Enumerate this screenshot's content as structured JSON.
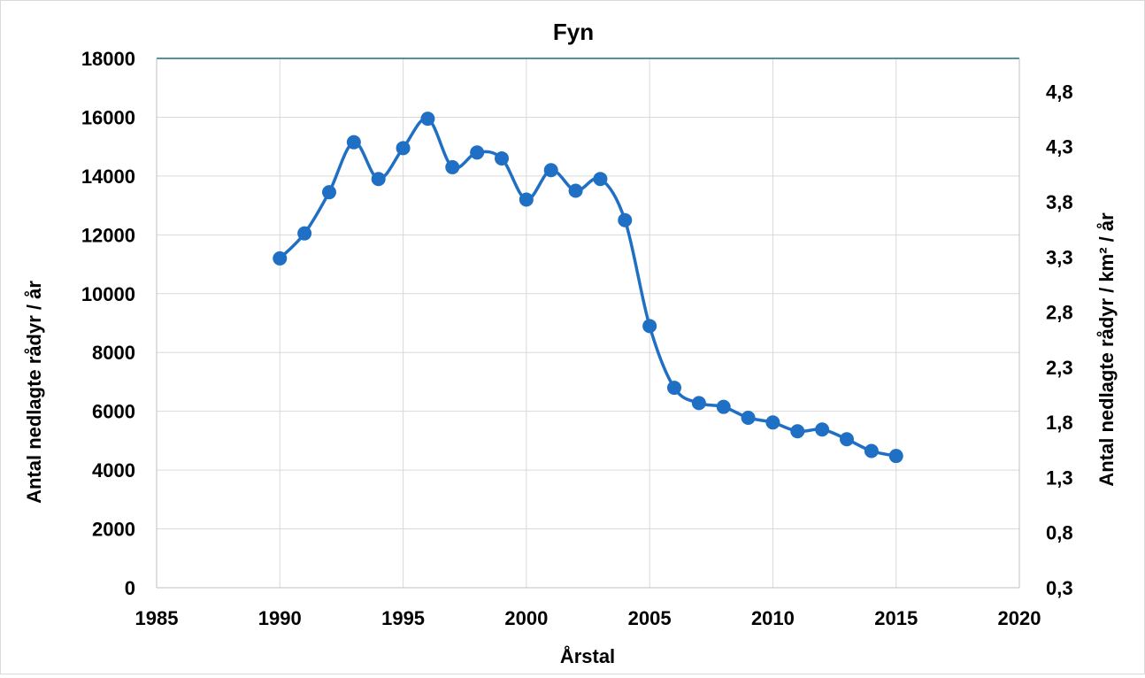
{
  "chart_data": {
    "type": "line",
    "title": "Fyn",
    "xlabel": "Årstal",
    "ylabel": "Antal nedlagte rådyr / år",
    "y2label": "Antal nedlagte rådyr / km² / år",
    "xlim": [
      1985,
      2020
    ],
    "xticks": [
      1985,
      1990,
      1995,
      2000,
      2005,
      2010,
      2015,
      2020
    ],
    "ylim": [
      0,
      18000
    ],
    "yticks": [
      0,
      2000,
      4000,
      6000,
      8000,
      10000,
      12000,
      14000,
      16000,
      18000
    ],
    "y2ticks": [
      "0,3",
      "0,8",
      "1,3",
      "1,8",
      "2,3",
      "2,8",
      "3,3",
      "3,8",
      "4,3",
      "4,8"
    ],
    "y2tick_values": [
      0.3,
      0.8,
      1.3,
      1.8,
      2.3,
      2.8,
      3.3,
      3.8,
      4.3,
      4.8
    ],
    "y2lim": [
      0.3,
      5.1
    ],
    "grid": true,
    "smooth": true,
    "line_color": "#1f6fc5",
    "grid_color": "#d9d9d9",
    "series": [
      {
        "x": [
          1990,
          1991,
          1992,
          1993,
          1994,
          1995,
          1996,
          1997,
          1998,
          1999,
          2000,
          2001,
          2002,
          2003,
          2004,
          2005,
          2006,
          2007,
          2008,
          2009,
          2010,
          2011,
          2012,
          2013,
          2014,
          2015
        ],
        "values": [
          11200,
          12050,
          13450,
          15150,
          13900,
          14950,
          15950,
          14300,
          14800,
          14600,
          13200,
          14200,
          13500,
          13900,
          12500,
          8900,
          6800,
          6280,
          6150,
          5780,
          5620,
          5320,
          5380,
          5050,
          4650,
          4480
        ]
      }
    ]
  }
}
